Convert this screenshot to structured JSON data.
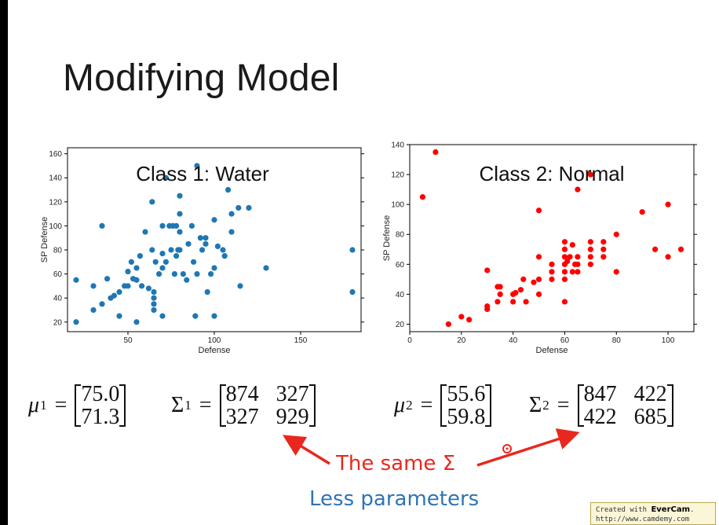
{
  "slide": {
    "title": "Modifying Model",
    "annotation_same": "The same Σ",
    "annotation_params": "Less parameters",
    "watermark_line1_prefix": "Created with ",
    "watermark_line1_brand": "EverCam",
    "watermark_line1_suffix": ".",
    "watermark_line2": "http://www.camdemy.com"
  },
  "equations": {
    "mu1": {
      "symbol": "μ",
      "sup": "1",
      "eq": "=",
      "values": [
        "75.0",
        "71.3"
      ]
    },
    "sigma1": {
      "symbol": "Σ",
      "sup": "1",
      "eq": "=",
      "rows": [
        [
          "874",
          "327"
        ],
        [
          "327",
          "929"
        ]
      ]
    },
    "mu2": {
      "symbol": "μ",
      "sup": "2",
      "eq": "=",
      "values": [
        "55.6",
        "59.8"
      ]
    },
    "sigma2": {
      "symbol": "Σ",
      "sup": "2",
      "eq": "=",
      "rows": [
        [
          "847",
          "422"
        ],
        [
          "422",
          "685"
        ]
      ]
    }
  },
  "colors": {
    "water": "#1f77b4",
    "normal": "#ff0000",
    "annotation": "#e8281e",
    "params": "#2e74b5"
  },
  "chart_data": [
    {
      "type": "scatter",
      "title": "Class 1: Water",
      "xlabel": "Defense",
      "ylabel": "SP Defense",
      "xlim": [
        15,
        185
      ],
      "ylim": [
        12,
        165
      ],
      "xticks": [
        50,
        100,
        150
      ],
      "yticks": [
        20,
        40,
        60,
        80,
        100,
        120,
        140,
        160
      ],
      "grid": false,
      "color": "#1f77b4",
      "points": [
        [
          20,
          55
        ],
        [
          20,
          20
        ],
        [
          30,
          30
        ],
        [
          30,
          50
        ],
        [
          35,
          100
        ],
        [
          35,
          35
        ],
        [
          38,
          56
        ],
        [
          40,
          40
        ],
        [
          42,
          42
        ],
        [
          45,
          25
        ],
        [
          45,
          45
        ],
        [
          48,
          50
        ],
        [
          50,
          62
        ],
        [
          50,
          50
        ],
        [
          52,
          70
        ],
        [
          53,
          56
        ],
        [
          55,
          20
        ],
        [
          55,
          55
        ],
        [
          55,
          65
        ],
        [
          57,
          75
        ],
        [
          58,
          50
        ],
        [
          60,
          95
        ],
        [
          62,
          48
        ],
        [
          64,
          120
        ],
        [
          64,
          80
        ],
        [
          65,
          45
        ],
        [
          65,
          40
        ],
        [
          65,
          35
        ],
        [
          65,
          30
        ],
        [
          66,
          70
        ],
        [
          68,
          60
        ],
        [
          70,
          100
        ],
        [
          70,
          77
        ],
        [
          70,
          65
        ],
        [
          70,
          25
        ],
        [
          72,
          70
        ],
        [
          72,
          140
        ],
        [
          74,
          100
        ],
        [
          75,
          80
        ],
        [
          76,
          100
        ],
        [
          77,
          60
        ],
        [
          78,
          100
        ],
        [
          78,
          75
        ],
        [
          79,
          80
        ],
        [
          80,
          125
        ],
        [
          80,
          110
        ],
        [
          80,
          95
        ],
        [
          80,
          80
        ],
        [
          82,
          60
        ],
        [
          84,
          55
        ],
        [
          85,
          85
        ],
        [
          87,
          100
        ],
        [
          88,
          70
        ],
        [
          89,
          25
        ],
        [
          90,
          60
        ],
        [
          90,
          150
        ],
        [
          92,
          90
        ],
        [
          93,
          80
        ],
        [
          95,
          85
        ],
        [
          95,
          90
        ],
        [
          96,
          45
        ],
        [
          98,
          60
        ],
        [
          100,
          65
        ],
        [
          100,
          105
        ],
        [
          100,
          25
        ],
        [
          102,
          83
        ],
        [
          105,
          80
        ],
        [
          106,
          75
        ],
        [
          108,
          130
        ],
        [
          110,
          95
        ],
        [
          110,
          110
        ],
        [
          114,
          115
        ],
        [
          115,
          50
        ],
        [
          120,
          115
        ],
        [
          130,
          65
        ],
        [
          180,
          80
        ],
        [
          180,
          45
        ]
      ]
    },
    {
      "type": "scatter",
      "title": "Class 2: Normal",
      "xlabel": "Defense",
      "ylabel": "SP Defense",
      "xlim": [
        0,
        110
      ],
      "ylim": [
        15,
        140
      ],
      "xticks": [
        0,
        20,
        40,
        60,
        80,
        100
      ],
      "yticks": [
        20,
        40,
        60,
        80,
        100,
        120,
        140
      ],
      "grid": false,
      "color": "#ff0000",
      "points": [
        [
          5,
          105
        ],
        [
          10,
          135
        ],
        [
          15,
          20
        ],
        [
          20,
          25
        ],
        [
          23,
          23
        ],
        [
          30,
          30
        ],
        [
          30,
          32
        ],
        [
          30,
          56
        ],
        [
          34,
          45
        ],
        [
          34,
          35
        ],
        [
          35,
          40
        ],
        [
          35,
          45
        ],
        [
          40,
          35
        ],
        [
          40,
          40
        ],
        [
          41,
          41
        ],
        [
          43,
          43
        ],
        [
          44,
          50
        ],
        [
          45,
          35
        ],
        [
          48,
          48
        ],
        [
          50,
          50
        ],
        [
          50,
          96
        ],
        [
          50,
          40
        ],
        [
          50,
          65
        ],
        [
          55,
          55
        ],
        [
          55,
          60
        ],
        [
          55,
          50
        ],
        [
          60,
          35
        ],
        [
          60,
          50
        ],
        [
          60,
          55
        ],
        [
          60,
          60
        ],
        [
          60,
          65
        ],
        [
          60,
          70
        ],
        [
          60,
          75
        ],
        [
          61,
          62
        ],
        [
          62,
          65
        ],
        [
          63,
          73
        ],
        [
          63,
          55
        ],
        [
          64,
          60
        ],
        [
          65,
          60
        ],
        [
          65,
          55
        ],
        [
          65,
          110
        ],
        [
          65,
          65
        ],
        [
          70,
          60
        ],
        [
          70,
          65
        ],
        [
          70,
          70
        ],
        [
          70,
          75
        ],
        [
          70,
          120
        ],
        [
          75,
          70
        ],
        [
          75,
          75
        ],
        [
          75,
          65
        ],
        [
          80,
          55
        ],
        [
          80,
          80
        ],
        [
          90,
          95
        ],
        [
          95,
          70
        ],
        [
          100,
          100
        ],
        [
          100,
          65
        ],
        [
          105,
          70
        ]
      ]
    }
  ]
}
